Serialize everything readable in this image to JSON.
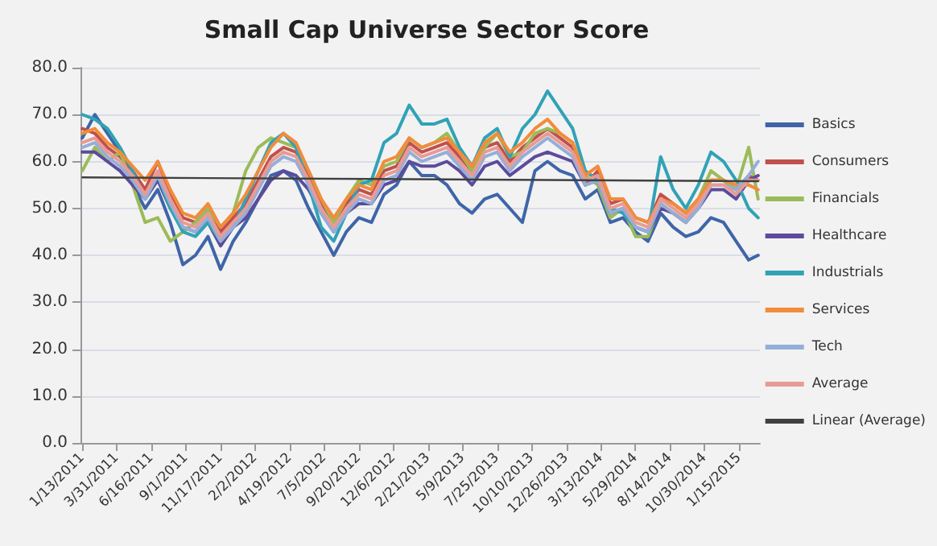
{
  "chart_data": {
    "type": "line",
    "title": "Small Cap Universe Sector Score",
    "x": [
      "2011-01-13",
      "2011-02-10",
      "2011-03-10",
      "2011-04-07",
      "2011-05-05",
      "2011-06-02",
      "2011-06-30",
      "2011-07-28",
      "2011-08-25",
      "2011-09-22",
      "2011-10-20",
      "2011-11-17",
      "2011-12-15",
      "2012-01-12",
      "2012-02-09",
      "2012-03-08",
      "2012-04-05",
      "2012-05-03",
      "2012-05-31",
      "2012-06-28",
      "2012-07-26",
      "2012-08-23",
      "2012-09-20",
      "2012-10-18",
      "2012-11-15",
      "2012-12-13",
      "2013-01-10",
      "2013-02-07",
      "2013-03-07",
      "2013-04-04",
      "2013-05-02",
      "2013-05-30",
      "2013-06-27",
      "2013-07-25",
      "2013-08-22",
      "2013-09-19",
      "2013-10-17",
      "2013-11-14",
      "2013-12-12",
      "2014-01-09",
      "2014-02-06",
      "2014-03-06",
      "2014-04-03",
      "2014-05-01",
      "2014-05-29",
      "2014-06-26",
      "2014-07-24",
      "2014-08-21",
      "2014-09-18",
      "2014-10-16",
      "2014-11-13",
      "2014-12-11",
      "2015-01-08",
      "2015-02-05",
      "2015-02-26"
    ],
    "series": [
      {
        "name": "Basics",
        "color": "#3f65a8",
        "values": [
          65,
          70,
          66,
          62,
          55,
          50,
          54,
          47,
          38,
          40,
          44,
          37,
          43,
          47,
          52,
          57,
          58,
          56,
          50,
          45,
          40,
          45,
          48,
          47,
          53,
          55,
          60,
          57,
          57,
          55,
          51,
          49,
          52,
          53,
          50,
          47,
          58,
          60,
          58,
          57,
          52,
          54,
          47,
          48,
          45,
          43,
          49,
          46,
          44,
          45,
          48,
          47,
          43,
          39,
          40
        ]
      },
      {
        "name": "Consumers",
        "color": "#c0504d",
        "values": [
          67,
          66,
          63,
          61,
          58,
          54,
          60,
          53,
          48,
          47,
          50,
          45,
          48,
          51,
          56,
          61,
          63,
          62,
          57,
          51,
          47,
          51,
          54,
          53,
          58,
          59,
          64,
          62,
          63,
          64,
          61,
          58,
          63,
          64,
          60,
          63,
          65,
          67,
          65,
          63,
          55,
          58,
          51,
          52,
          48,
          47,
          53,
          51,
          49,
          52,
          56,
          56,
          54,
          57,
          56
        ]
      },
      {
        "name": "Financials",
        "color": "#9bbb59",
        "values": [
          58,
          63,
          60,
          62,
          55,
          47,
          48,
          43,
          45,
          47,
          50,
          46,
          49,
          58,
          63,
          65,
          64,
          63,
          58,
          52,
          47,
          52,
          56,
          55,
          59,
          60,
          65,
          63,
          64,
          66,
          62,
          58,
          63,
          66,
          61,
          62,
          66,
          67,
          66,
          64,
          57,
          55,
          48,
          50,
          44,
          44,
          51,
          49,
          47,
          52,
          58,
          56,
          54,
          63,
          52
        ]
      },
      {
        "name": "Healthcare",
        "color": "#5c4b9b",
        "values": [
          62,
          62,
          60,
          58,
          55,
          52,
          56,
          50,
          46,
          45,
          47,
          42,
          46,
          48,
          52,
          56,
          58,
          57,
          54,
          49,
          45,
          49,
          51,
          51,
          55,
          56,
          60,
          59,
          59,
          60,
          58,
          55,
          59,
          60,
          57,
          59,
          61,
          62,
          61,
          60,
          55,
          56,
          49,
          50,
          46,
          45,
          50,
          49,
          47,
          50,
          54,
          54,
          52,
          56,
          57
        ]
      },
      {
        "name": "Industrials",
        "color": "#31a2b6",
        "values": [
          70,
          69,
          67,
          63,
          58,
          52,
          57,
          50,
          45,
          44,
          47,
          43,
          46,
          52,
          58,
          64,
          66,
          63,
          55,
          46,
          43,
          49,
          55,
          56,
          64,
          66,
          72,
          68,
          68,
          69,
          63,
          59,
          65,
          67,
          61,
          67,
          70,
          75,
          71,
          67,
          58,
          56,
          50,
          49,
          46,
          45,
          61,
          54,
          50,
          55,
          62,
          60,
          56,
          50,
          48
        ]
      },
      {
        "name": "Services",
        "color": "#f28c3b",
        "values": [
          66,
          67,
          64,
          62,
          59,
          56,
          60,
          54,
          49,
          48,
          51,
          46,
          49,
          53,
          58,
          63,
          66,
          64,
          58,
          52,
          48,
          52,
          55,
          54,
          60,
          61,
          65,
          63,
          64,
          65,
          62,
          59,
          64,
          66,
          62,
          64,
          67,
          69,
          66,
          64,
          57,
          59,
          52,
          52,
          48,
          47,
          52,
          51,
          49,
          52,
          56,
          56,
          55,
          55,
          54
        ]
      },
      {
        "name": "Tech",
        "color": "#95aed8",
        "values": [
          63,
          64,
          61,
          59,
          56,
          52,
          57,
          51,
          46,
          45,
          48,
          43,
          46,
          49,
          54,
          59,
          61,
          60,
          55,
          49,
          45,
          49,
          52,
          51,
          56,
          57,
          62,
          60,
          61,
          62,
          59,
          56,
          61,
          62,
          58,
          61,
          63,
          65,
          63,
          61,
          55,
          56,
          49,
          50,
          46,
          45,
          51,
          49,
          47,
          50,
          55,
          55,
          54,
          57,
          60
        ]
      },
      {
        "name": "Average",
        "color": "#e89b94",
        "values": [
          64,
          65,
          62,
          60,
          57,
          53,
          58,
          52,
          47,
          46,
          49,
          44,
          47,
          50,
          55,
          60,
          62,
          61,
          56,
          50,
          46,
          50,
          53,
          52,
          57,
          58,
          63,
          61,
          62,
          63,
          60,
          57,
          62,
          63,
          59,
          62,
          64,
          66,
          64,
          62,
          56,
          57,
          50,
          51,
          47,
          46,
          52,
          50,
          48,
          51,
          55,
          55,
          53,
          56,
          56
        ]
      },
      {
        "name": "Linear (Average)",
        "color": "#404040",
        "x": [
          "2011-01-13",
          "2015-02-26"
        ],
        "values": [
          56.6,
          55.8
        ]
      }
    ],
    "xlim": [
      "2011-01-09",
      "2015-03-02"
    ],
    "xticks": [
      {
        "value": "2011-01-13",
        "label": "1/13/2011"
      },
      {
        "value": "2011-03-31",
        "label": "3/31/2011"
      },
      {
        "value": "2011-06-16",
        "label": "6/16/2011"
      },
      {
        "value": "2011-09-01",
        "label": "9/1/2011"
      },
      {
        "value": "2011-11-17",
        "label": "11/17/2011"
      },
      {
        "value": "2012-02-02",
        "label": "2/2/2012"
      },
      {
        "value": "2012-04-19",
        "label": "4/19/2012"
      },
      {
        "value": "2012-07-05",
        "label": "7/5/2012"
      },
      {
        "value": "2012-09-20",
        "label": "9/20/2012"
      },
      {
        "value": "2012-12-06",
        "label": "12/6/2012"
      },
      {
        "value": "2013-02-21",
        "label": "2/21/2013"
      },
      {
        "value": "2013-05-09",
        "label": "5/9/2013"
      },
      {
        "value": "2013-07-25",
        "label": "7/25/2013"
      },
      {
        "value": "2013-10-10",
        "label": "10/10/2013"
      },
      {
        "value": "2013-12-26",
        "label": "12/26/2013"
      },
      {
        "value": "2014-03-13",
        "label": "3/13/2014"
      },
      {
        "value": "2014-05-29",
        "label": "5/29/2014"
      },
      {
        "value": "2014-08-14",
        "label": "8/14/2014"
      },
      {
        "value": "2014-10-30",
        "label": "10/30/2014"
      },
      {
        "value": "2015-01-15",
        "label": "1/15/2015"
      }
    ],
    "ylim": [
      0,
      80
    ],
    "yticks": [
      {
        "value": 0,
        "label": "0.0"
      },
      {
        "value": 10,
        "label": "10.0"
      },
      {
        "value": 20,
        "label": "20.0"
      },
      {
        "value": 30,
        "label": "30.0"
      },
      {
        "value": 40,
        "label": "40.0"
      },
      {
        "value": 50,
        "label": "50.0"
      },
      {
        "value": 60,
        "label": "60.0"
      },
      {
        "value": 70,
        "label": "70.0"
      },
      {
        "value": 80,
        "label": "80.0"
      }
    ],
    "grid": "y",
    "legend": "right",
    "marker": "none",
    "line_style": "solid"
  }
}
